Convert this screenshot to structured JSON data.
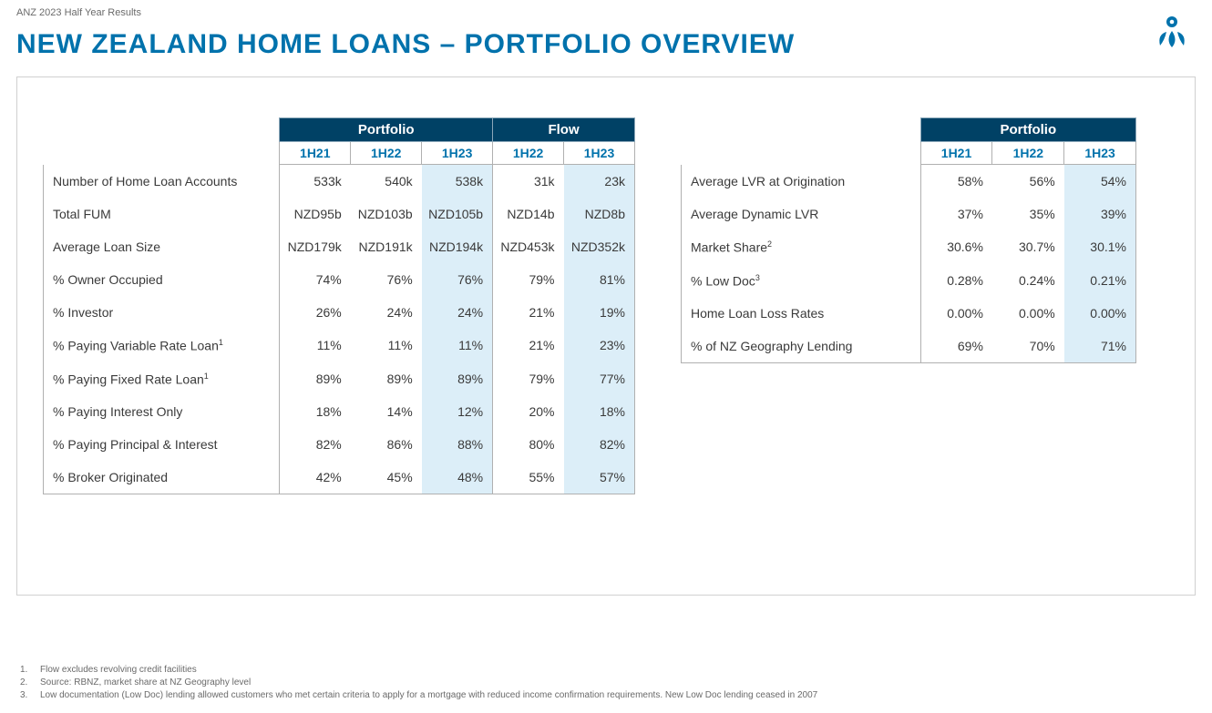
{
  "header": {
    "report_name": "ANZ 2023 Half Year Results",
    "page_title": "NEW ZEALAND HOME LOANS – PORTFOLIO OVERVIEW"
  },
  "colors": {
    "title": "#0072ac",
    "group_header_bg": "#004165",
    "highlight_col_bg": "#dceef8",
    "border": "#b0b0b0",
    "text": "#3a3a3a"
  },
  "table_left": {
    "groups": [
      {
        "label": "Portfolio",
        "span": 3
      },
      {
        "label": "Flow",
        "span": 2
      }
    ],
    "periods": [
      "1H21",
      "1H22",
      "1H23",
      "1H22",
      "1H23"
    ],
    "highlight_cols": [
      2,
      4
    ],
    "rows": [
      {
        "label": "Number of Home Loan Accounts",
        "sup": "",
        "values": [
          "533k",
          "540k",
          "538k",
          "31k",
          "23k"
        ]
      },
      {
        "label": "Total FUM",
        "sup": "",
        "values": [
          "NZD95b",
          "NZD103b",
          "NZD105b",
          "NZD14b",
          "NZD8b"
        ]
      },
      {
        "label": "Average Loan Size",
        "sup": "",
        "values": [
          "NZD179k",
          "NZD191k",
          "NZD194k",
          "NZD453k",
          "NZD352k"
        ]
      },
      {
        "label": "% Owner Occupied",
        "sup": "",
        "values": [
          "74%",
          "76%",
          "76%",
          "79%",
          "81%"
        ]
      },
      {
        "label": "% Investor",
        "sup": "",
        "values": [
          "26%",
          "24%",
          "24%",
          "21%",
          "19%"
        ]
      },
      {
        "label": "% Paying Variable Rate Loan",
        "sup": "1",
        "values": [
          "11%",
          "11%",
          "11%",
          "21%",
          "23%"
        ]
      },
      {
        "label": "% Paying Fixed Rate Loan",
        "sup": "1",
        "values": [
          "89%",
          "89%",
          "89%",
          "79%",
          "77%"
        ]
      },
      {
        "label": "% Paying Interest Only",
        "sup": "",
        "values": [
          "18%",
          "14%",
          "12%",
          "20%",
          "18%"
        ]
      },
      {
        "label": "% Paying Principal & Interest",
        "sup": "",
        "values": [
          "82%",
          "86%",
          "88%",
          "80%",
          "82%"
        ]
      },
      {
        "label": "% Broker Originated",
        "sup": "",
        "values": [
          "42%",
          "45%",
          "48%",
          "55%",
          "57%"
        ]
      }
    ]
  },
  "table_right": {
    "groups": [
      {
        "label": "Portfolio",
        "span": 3
      }
    ],
    "periods": [
      "1H21",
      "1H22",
      "1H23"
    ],
    "highlight_cols": [
      2
    ],
    "rows": [
      {
        "label": "Average LVR at Origination",
        "sup": "",
        "values": [
          "58%",
          "56%",
          "54%"
        ]
      },
      {
        "label": "Average Dynamic LVR",
        "sup": "",
        "values": [
          "37%",
          "35%",
          "39%"
        ]
      },
      {
        "label": "Market Share",
        "sup": "2",
        "values": [
          "30.6%",
          "30.7%",
          "30.1%"
        ]
      },
      {
        "label": "% Low Doc",
        "sup": "3",
        "values": [
          "0.28%",
          "0.24%",
          "0.21%"
        ]
      },
      {
        "label": "Home Loan Loss Rates",
        "sup": "",
        "values": [
          "0.00%",
          "0.00%",
          "0.00%"
        ]
      },
      {
        "label": "% of NZ Geography Lending",
        "sup": "",
        "values": [
          "69%",
          "70%",
          "71%"
        ]
      }
    ]
  },
  "footnotes": [
    {
      "num": "1.",
      "text": "Flow excludes revolving credit facilities"
    },
    {
      "num": "2.",
      "text": "Source: RBNZ, market share at NZ Geography level"
    },
    {
      "num": "3.",
      "text": "Low documentation (Low Doc) lending allowed customers who met certain criteria to apply for a mortgage with reduced income confirmation requirements. New Low Doc lending ceased in 2007"
    }
  ]
}
